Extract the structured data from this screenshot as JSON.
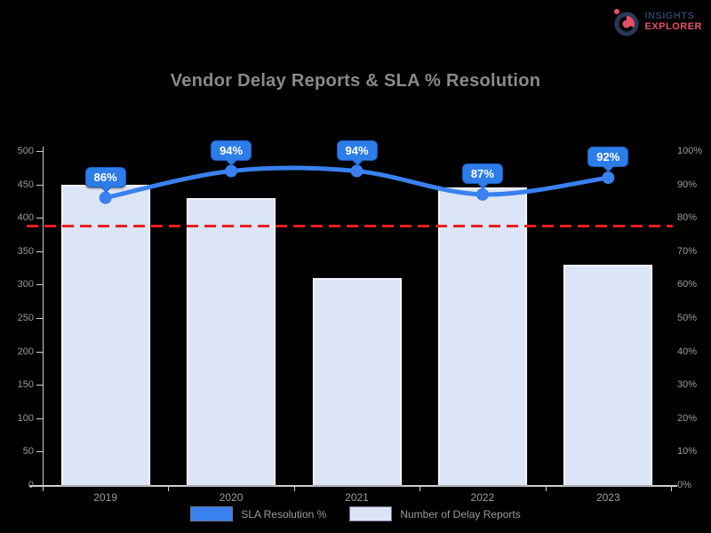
{
  "logo": {
    "line1": "INSIGHTS",
    "line2": "EXPLORER",
    "navy": "#2f3e63",
    "pink": "#e8506a"
  },
  "chart_data": {
    "type": "bar",
    "title": "Vendor Delay Reports & SLA % Resolution",
    "categories": [
      "2019",
      "2020",
      "2021",
      "2022",
      "2023"
    ],
    "series": [
      {
        "name": "SLA Resolution %",
        "type": "line",
        "axis": "right",
        "color": "#3a80ef",
        "values": [
          86,
          94,
          94,
          87,
          92
        ],
        "point_labels": [
          "86%",
          "94%",
          "94%",
          "87%",
          "92%"
        ]
      },
      {
        "name": "Number of Delay Reports",
        "type": "bar",
        "axis": "left",
        "color": "#dce4f7",
        "values": [
          450,
          430,
          310,
          445,
          330
        ]
      }
    ],
    "threshold": {
      "value": 77.5,
      "axis": "right",
      "color": "#ee1c1c",
      "style": "dashed"
    },
    "axis_left": {
      "min": 0,
      "max": 500,
      "step": 50,
      "ticks": [
        "500",
        "450",
        "400",
        "350",
        "300",
        "250",
        "200",
        "150",
        "100",
        "50",
        "0"
      ]
    },
    "axis_right": {
      "min": 0,
      "max": 100,
      "step": 10,
      "ticks": [
        "100%",
        "90%",
        "80%",
        "70%",
        "60%",
        "50%",
        "40%",
        "30%",
        "20%",
        "10%",
        "0%"
      ]
    },
    "legend_position": "bottom",
    "grid": false,
    "background": "#000000"
  }
}
